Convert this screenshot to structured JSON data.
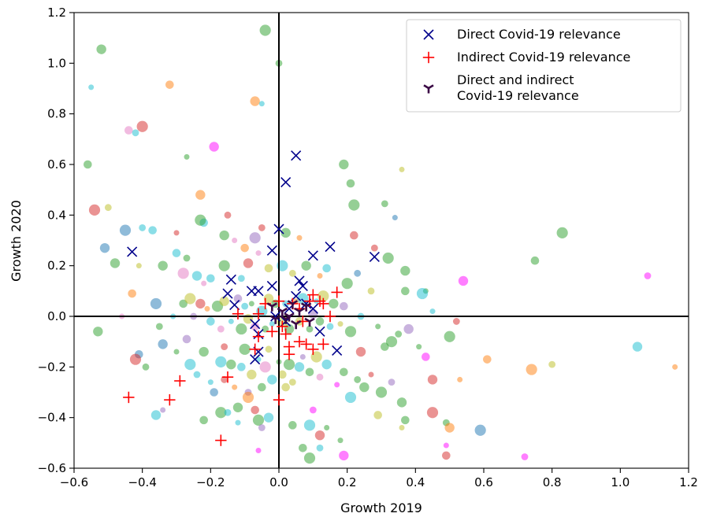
{
  "chart_data": {
    "type": "scatter",
    "xlabel": "Growth 2019",
    "ylabel": "Growth 2020",
    "xlim": [
      -0.6,
      1.2
    ],
    "ylim": [
      -0.6,
      1.2
    ],
    "xticks": [
      "−0.6",
      "−0.4",
      "−0.2",
      "0.0",
      "0.2",
      "0.4",
      "0.6",
      "0.8",
      "1.0",
      "1.2"
    ],
    "yticks": [
      "−0.6",
      "−0.4",
      "−0.2",
      "0.0",
      "0.2",
      "0.4",
      "0.6",
      "0.8",
      "1.0",
      "1.2"
    ],
    "legend_position": "top-right",
    "grid": false,
    "reference_lines": {
      "x": 0,
      "y": 0
    },
    "series": [
      {
        "name": "Direct Covid-19 relevance",
        "marker": "x",
        "color": "#00008b",
        "points": [
          [
            0.05,
            0.635
          ],
          [
            0.02,
            0.53
          ],
          [
            0.0,
            0.345
          ],
          [
            -0.43,
            0.255
          ],
          [
            -0.02,
            0.26
          ],
          [
            0.15,
            0.275
          ],
          [
            0.28,
            0.235
          ],
          [
            0.1,
            0.24
          ],
          [
            -0.14,
            0.145
          ],
          [
            -0.15,
            0.09
          ],
          [
            -0.13,
            0.045
          ],
          [
            -0.08,
            0.1
          ],
          [
            -0.06,
            0.1
          ],
          [
            -0.02,
            0.12
          ],
          [
            0.06,
            0.14
          ],
          [
            0.07,
            0.12
          ],
          [
            0.05,
            0.08
          ],
          [
            -0.01,
            0.0
          ],
          [
            0.03,
            0.03
          ],
          [
            -0.07,
            -0.03
          ],
          [
            -0.06,
            -0.07
          ],
          [
            0.1,
            0.03
          ],
          [
            0.12,
            -0.06
          ],
          [
            0.17,
            -0.135
          ],
          [
            -0.07,
            -0.17
          ],
          [
            -0.06,
            -0.14
          ],
          [
            0.02,
            -0.02
          ],
          [
            0.08,
            0.05
          ]
        ]
      },
      {
        "name": "Indirect Covid-19 relevance",
        "marker": "+",
        "color": "#ff0000",
        "points": [
          [
            -0.12,
            0.01
          ],
          [
            -0.06,
            0.01
          ],
          [
            -0.04,
            0.05
          ],
          [
            0.0,
            0.06
          ],
          [
            0.04,
            0.05
          ],
          [
            0.06,
            0.03
          ],
          [
            0.09,
            0.06
          ],
          [
            0.1,
            0.085
          ],
          [
            0.17,
            0.095
          ],
          [
            0.13,
            0.05
          ],
          [
            0.12,
            0.06
          ],
          [
            -0.06,
            -0.08
          ],
          [
            -0.07,
            -0.13
          ],
          [
            0.03,
            -0.12
          ],
          [
            0.03,
            -0.15
          ],
          [
            0.02,
            -0.07
          ],
          [
            0.06,
            -0.1
          ],
          [
            0.08,
            -0.11
          ],
          [
            0.1,
            -0.13
          ],
          [
            0.13,
            -0.11
          ],
          [
            0.01,
            -0.04
          ],
          [
            -0.02,
            -0.06
          ],
          [
            0.07,
            -0.02
          ],
          [
            0.15,
            0.0
          ],
          [
            -0.15,
            -0.24
          ],
          [
            -0.17,
            -0.49
          ],
          [
            -0.29,
            -0.255
          ],
          [
            -0.44,
            -0.32
          ],
          [
            -0.32,
            -0.33
          ],
          [
            0.0,
            -0.33
          ]
        ]
      },
      {
        "name": "Direct and indirect\nCovid-19 relevance",
        "marker": "tri_down",
        "color": "#3b0a45",
        "points": [
          [
            0.04,
            0.05
          ],
          [
            0.02,
            -0.01
          ],
          [
            0.01,
            0.02
          ],
          [
            -0.01,
            -0.01
          ],
          [
            0.06,
            0.02
          ],
          [
            0.08,
            0.04
          ],
          [
            -0.02,
            0.04
          ],
          [
            0.05,
            -0.03
          ],
          [
            0.03,
            0.0
          ],
          [
            0.09,
            -0.02
          ]
        ]
      }
    ],
    "background_bubbles": {
      "palette": [
        "#2ca02c",
        "#17becf",
        "#ff7f0e",
        "#e377c2",
        "#d62728",
        "#9467bd",
        "#bcbd22",
        "#1f77b4",
        "#ff00ff",
        "#7f7f7f"
      ],
      "opacity": 0.5,
      "points": [
        [
          -0.52,
          1.055,
          0
        ],
        [
          -0.55,
          0.905,
          1
        ],
        [
          -0.32,
          0.915,
          2
        ],
        [
          -0.04,
          1.13,
          0
        ],
        [
          0.0,
          1.0,
          0
        ],
        [
          -0.07,
          0.85,
          2
        ],
        [
          -0.05,
          0.84,
          1
        ],
        [
          -0.44,
          0.735,
          3
        ],
        [
          -0.4,
          0.75,
          4
        ],
        [
          -0.42,
          0.725,
          1
        ],
        [
          -0.19,
          0.67,
          8
        ],
        [
          -0.27,
          0.63,
          0
        ],
        [
          -0.56,
          0.6,
          0
        ],
        [
          -0.54,
          0.42,
          4
        ],
        [
          -0.5,
          0.43,
          6
        ],
        [
          0.19,
          0.6,
          0
        ],
        [
          0.36,
          0.58,
          6
        ],
        [
          0.21,
          0.525,
          0
        ],
        [
          0.22,
          0.44,
          0
        ],
        [
          0.31,
          0.445,
          0
        ],
        [
          -0.23,
          0.48,
          2
        ],
        [
          0.34,
          0.39,
          7
        ],
        [
          -0.37,
          0.34,
          1
        ],
        [
          -0.45,
          0.34,
          7
        ],
        [
          -0.4,
          0.35,
          1
        ],
        [
          -0.51,
          0.27,
          7
        ],
        [
          -0.3,
          0.33,
          4
        ],
        [
          -0.22,
          0.37,
          1
        ],
        [
          -0.23,
          0.38,
          0
        ],
        [
          -0.15,
          0.4,
          4
        ],
        [
          -0.16,
          0.32,
          0
        ],
        [
          -0.13,
          0.3,
          3
        ],
        [
          -0.1,
          0.27,
          2
        ],
        [
          -0.07,
          0.31,
          5
        ],
        [
          -0.05,
          0.35,
          4
        ],
        [
          0.02,
          0.33,
          0
        ],
        [
          0.06,
          0.31,
          2
        ],
        [
          0.22,
          0.32,
          4
        ],
        [
          0.32,
          0.23,
          0
        ],
        [
          0.28,
          0.27,
          4
        ],
        [
          -0.48,
          0.21,
          0
        ],
        [
          -0.41,
          0.2,
          6
        ],
        [
          -0.3,
          0.25,
          1
        ],
        [
          -0.28,
          0.17,
          3
        ],
        [
          -0.27,
          0.23,
          0
        ],
        [
          -0.24,
          0.16,
          1
        ],
        [
          -0.22,
          0.13,
          3
        ],
        [
          -0.2,
          0.15,
          1
        ],
        [
          -0.16,
          0.2,
          0
        ],
        [
          -0.11,
          0.15,
          1
        ],
        [
          -0.09,
          0.21,
          4
        ],
        [
          -0.06,
          0.25,
          3
        ],
        [
          -0.03,
          0.19,
          6
        ],
        [
          0.01,
          0.2,
          1
        ],
        [
          0.04,
          0.17,
          6
        ],
        [
          0.08,
          0.2,
          0
        ],
        [
          0.12,
          0.16,
          2
        ],
        [
          0.14,
          0.19,
          1
        ],
        [
          0.2,
          0.13,
          0
        ],
        [
          0.23,
          0.17,
          7
        ],
        [
          0.37,
          0.18,
          0
        ],
        [
          0.43,
          0.1,
          0
        ],
        [
          0.75,
          0.22,
          0
        ],
        [
          0.83,
          0.33,
          0
        ],
        [
          1.08,
          0.16,
          8
        ],
        [
          0.54,
          0.14,
          8
        ],
        [
          0.45,
          0.02,
          1
        ],
        [
          0.37,
          0.1,
          0
        ],
        [
          0.42,
          0.09,
          1
        ],
        [
          0.27,
          0.1,
          6
        ],
        [
          -0.53,
          -0.06,
          0
        ],
        [
          -0.46,
          0.0,
          3
        ],
        [
          -0.43,
          0.09,
          2
        ],
        [
          -0.36,
          0.05,
          7
        ],
        [
          -0.35,
          -0.04,
          0
        ],
        [
          -0.34,
          0.2,
          0
        ],
        [
          -0.31,
          0.0,
          1
        ],
        [
          -0.28,
          0.05,
          0
        ],
        [
          -0.26,
          0.07,
          6
        ],
        [
          -0.25,
          0.0,
          5
        ],
        [
          -0.23,
          0.05,
          4
        ],
        [
          -0.21,
          0.03,
          2
        ],
        [
          -0.2,
          -0.02,
          1
        ],
        [
          -0.18,
          0.04,
          0
        ],
        [
          -0.17,
          -0.05,
          3
        ],
        [
          -0.16,
          0.06,
          6
        ],
        [
          -0.14,
          -0.02,
          1
        ],
        [
          -0.12,
          0.07,
          5
        ],
        [
          -0.11,
          -0.05,
          0
        ],
        [
          -0.1,
          0.04,
          1
        ],
        [
          -0.09,
          -0.01,
          6
        ],
        [
          -0.08,
          0.05,
          0
        ],
        [
          -0.07,
          -0.04,
          3
        ],
        [
          -0.05,
          0.02,
          1
        ],
        [
          -0.04,
          -0.05,
          0
        ],
        [
          -0.03,
          0.07,
          6
        ],
        [
          -0.02,
          -0.03,
          1
        ],
        [
          -0.01,
          0.05,
          0
        ],
        [
          0.01,
          -0.02,
          6
        ],
        [
          0.02,
          0.05,
          1
        ],
        [
          0.03,
          -0.05,
          0
        ],
        [
          0.05,
          0.06,
          2
        ],
        [
          0.06,
          -0.02,
          6
        ],
        [
          0.07,
          0.07,
          1
        ],
        [
          0.09,
          -0.05,
          0
        ],
        [
          0.1,
          0.01,
          5
        ],
        [
          0.11,
          0.06,
          1
        ],
        [
          0.12,
          -0.02,
          0
        ],
        [
          0.13,
          0.08,
          6
        ],
        [
          0.15,
          -0.04,
          1
        ],
        [
          0.16,
          0.05,
          0
        ],
        [
          0.18,
          -0.03,
          6
        ],
        [
          0.19,
          0.04,
          5
        ],
        [
          0.21,
          -0.06,
          0
        ],
        [
          0.24,
          0.0,
          1
        ],
        [
          0.24,
          -0.14,
          4
        ],
        [
          0.29,
          -0.04,
          0
        ],
        [
          0.31,
          -0.12,
          0
        ],
        [
          0.33,
          -0.1,
          0
        ],
        [
          0.35,
          -0.07,
          0
        ],
        [
          0.38,
          -0.05,
          5
        ],
        [
          0.41,
          -0.12,
          0
        ],
        [
          0.43,
          -0.16,
          8
        ],
        [
          0.5,
          -0.08,
          0
        ],
        [
          0.52,
          -0.02,
          4
        ],
        [
          0.45,
          -0.25,
          4
        ],
        [
          0.53,
          -0.25,
          2
        ],
        [
          0.61,
          -0.17,
          2
        ],
        [
          0.74,
          -0.21,
          2
        ],
        [
          0.8,
          -0.19,
          6
        ],
        [
          1.05,
          -0.12,
          1
        ],
        [
          1.16,
          -0.2,
          2
        ],
        [
          -0.41,
          -0.15,
          7
        ],
        [
          -0.42,
          -0.17,
          4
        ],
        [
          -0.39,
          -0.2,
          0
        ],
        [
          -0.34,
          -0.11,
          7
        ],
        [
          -0.3,
          -0.14,
          0
        ],
        [
          -0.27,
          -0.09,
          5
        ],
        [
          -0.26,
          -0.19,
          1
        ],
        [
          -0.24,
          -0.23,
          1
        ],
        [
          -0.22,
          -0.14,
          0
        ],
        [
          -0.2,
          -0.26,
          1
        ],
        [
          -0.19,
          -0.3,
          7
        ],
        [
          -0.17,
          -0.18,
          1
        ],
        [
          -0.16,
          -0.12,
          4
        ],
        [
          -0.14,
          -0.19,
          0
        ],
        [
          -0.13,
          -0.28,
          2
        ],
        [
          -0.11,
          -0.2,
          1
        ],
        [
          -0.1,
          -0.13,
          0
        ],
        [
          -0.09,
          -0.3,
          5
        ],
        [
          -0.08,
          -0.23,
          6
        ],
        [
          -0.06,
          -0.17,
          1
        ],
        [
          -0.05,
          -0.28,
          0
        ],
        [
          -0.04,
          -0.2,
          3
        ],
        [
          -0.03,
          -0.13,
          6
        ],
        [
          -0.02,
          -0.25,
          1
        ],
        [
          0.0,
          -0.18,
          0
        ],
        [
          0.01,
          -0.23,
          6
        ],
        [
          0.03,
          -0.19,
          0
        ],
        [
          0.04,
          -0.26,
          6
        ],
        [
          0.06,
          -0.2,
          1
        ],
        [
          0.07,
          -0.16,
          5
        ],
        [
          0.09,
          -0.22,
          0
        ],
        [
          0.11,
          -0.16,
          6
        ],
        [
          0.12,
          -0.24,
          3
        ],
        [
          0.14,
          -0.19,
          1
        ],
        [
          0.17,
          -0.27,
          8
        ],
        [
          0.19,
          -0.22,
          0
        ],
        [
          0.21,
          -0.32,
          1
        ],
        [
          0.23,
          -0.25,
          0
        ],
        [
          0.25,
          -0.28,
          0
        ],
        [
          0.27,
          -0.23,
          4
        ],
        [
          0.29,
          -0.39,
          6
        ],
        [
          0.3,
          -0.3,
          0
        ],
        [
          0.33,
          -0.26,
          5
        ],
        [
          0.36,
          -0.34,
          0
        ],
        [
          0.36,
          -0.44,
          6
        ],
        [
          0.37,
          -0.41,
          0
        ],
        [
          0.45,
          -0.38,
          4
        ],
        [
          0.49,
          -0.42,
          0
        ],
        [
          0.5,
          -0.44,
          2
        ],
        [
          0.49,
          -0.51,
          8
        ],
        [
          0.49,
          -0.55,
          4
        ],
        [
          0.59,
          -0.45,
          7
        ],
        [
          0.72,
          -0.555,
          8
        ],
        [
          -0.36,
          -0.39,
          1
        ],
        [
          -0.34,
          -0.37,
          5
        ],
        [
          -0.22,
          -0.41,
          0
        ],
        [
          -0.17,
          -0.38,
          0
        ],
        [
          -0.15,
          -0.38,
          1
        ],
        [
          -0.12,
          -0.36,
          0
        ],
        [
          -0.12,
          -0.42,
          1
        ],
        [
          -0.07,
          -0.37,
          4
        ],
        [
          -0.06,
          -0.41,
          0
        ],
        [
          -0.05,
          -0.44,
          5
        ],
        [
          -0.03,
          -0.4,
          1
        ],
        [
          -0.06,
          -0.53,
          8
        ],
        [
          0.04,
          -0.43,
          0
        ],
        [
          0.09,
          -0.43,
          1
        ],
        [
          0.1,
          -0.37,
          8
        ],
        [
          0.12,
          -0.47,
          4
        ],
        [
          0.14,
          -0.44,
          0
        ],
        [
          0.07,
          -0.52,
          0
        ],
        [
          0.09,
          -0.56,
          0
        ],
        [
          0.12,
          -0.52,
          1
        ],
        [
          0.19,
          -0.55,
          8
        ],
        [
          0.18,
          -0.49,
          0
        ],
        [
          0.02,
          -0.28,
          6
        ],
        [
          -0.09,
          -0.32,
          2
        ],
        [
          -0.16,
          -0.25,
          4
        ]
      ]
    }
  }
}
